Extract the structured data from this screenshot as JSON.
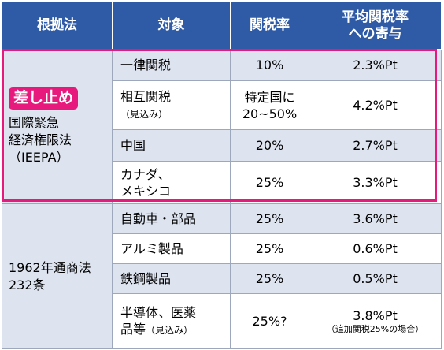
{
  "header": {
    "col_law": "根拠法",
    "col_target": "対象",
    "col_rate": "関税率",
    "col_contrib_line1": "平均関税率",
    "col_contrib_line2": "への寄与"
  },
  "group_ieepa": {
    "badge": "差し止め",
    "law_line1": "国際緊急",
    "law_line2": "経済権限法",
    "law_line3": "（IEEPA）",
    "rows": [
      {
        "target": "一律関税",
        "target_note": "",
        "rate": "10%",
        "rate_line2": "",
        "contribution": "2.3%Pt"
      },
      {
        "target": "相互関税",
        "target_note": "（見込み）",
        "rate": "特定国に",
        "rate_line2": "20~50%",
        "contribution": "4.2%Pt"
      },
      {
        "target": "中国",
        "target_note": "",
        "rate": "20%",
        "rate_line2": "",
        "contribution": "2.7%Pt"
      },
      {
        "target": "カナダ、",
        "target_note": "メキシコ",
        "rate": "25%",
        "rate_line2": "",
        "contribution": "3.3%Pt"
      }
    ]
  },
  "group_232": {
    "law_line1": "1962年通商法",
    "law_line2": "232条",
    "rows": [
      {
        "target": "自動車・部品",
        "rate": "25%",
        "contribution": "3.6%Pt"
      },
      {
        "target": "アルミ製品",
        "rate": "25%",
        "contribution": "0.6%Pt"
      },
      {
        "target": "鉄鋼製品",
        "rate": "25%",
        "contribution": "0.5%Pt"
      },
      {
        "target_line1": "半導体、医薬",
        "target_line2": "品等",
        "target_note": "（見込み）",
        "rate": "25%?",
        "contribution": "3.8%Pt",
        "contribution_note": "（追加関税25%の場合）"
      }
    ]
  },
  "colors": {
    "header_bg": "#2e5aa6",
    "band_bg": "#dde3ef",
    "highlight": "#e8197d"
  }
}
